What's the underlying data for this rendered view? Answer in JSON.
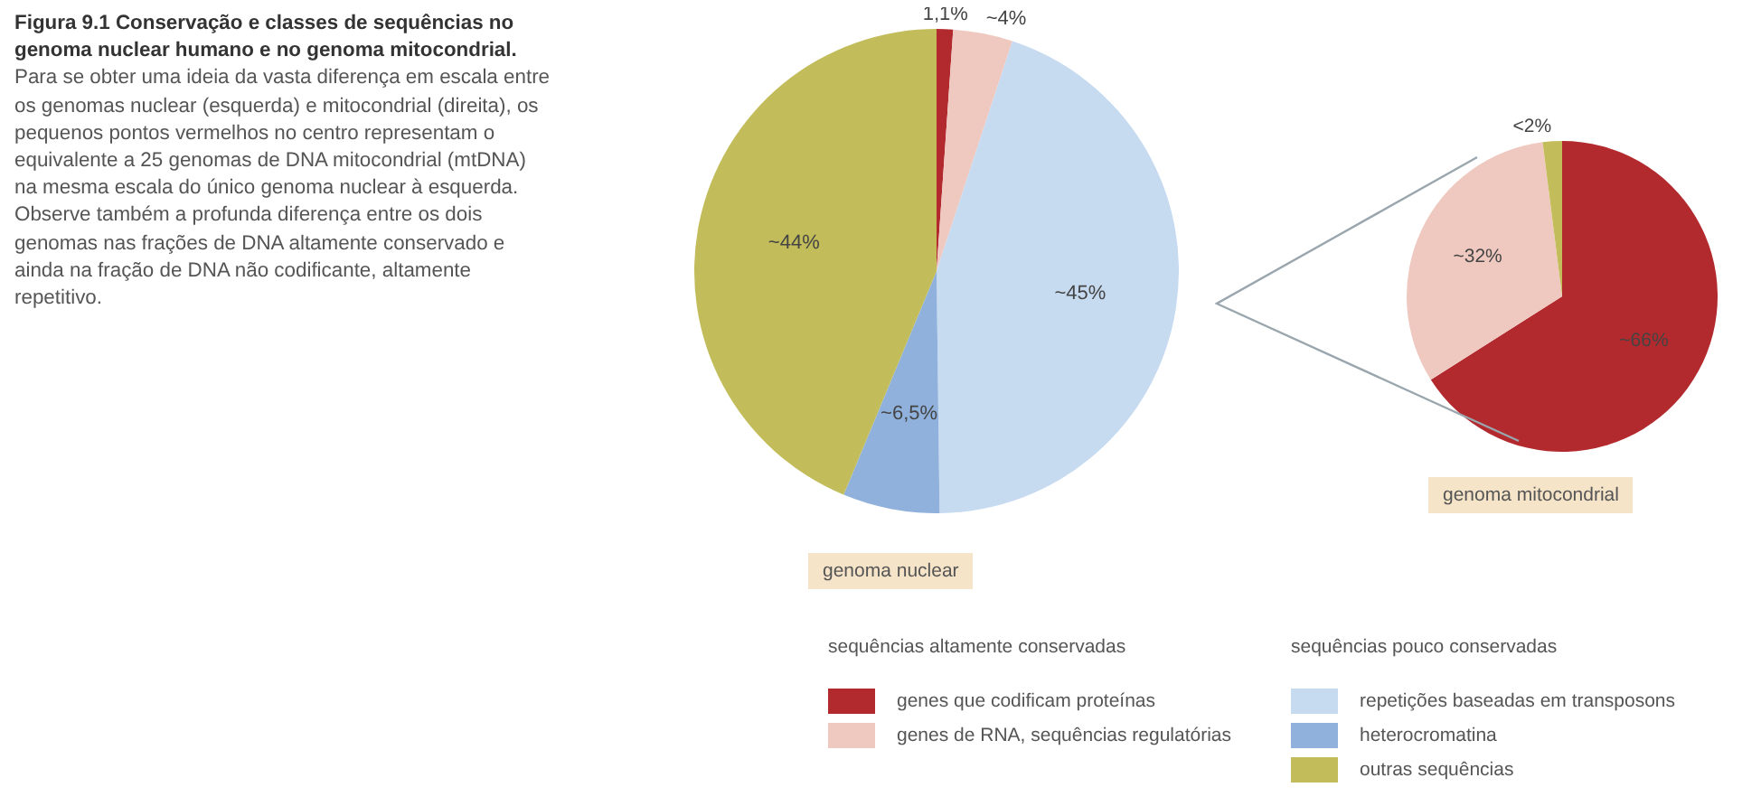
{
  "chart_data": [
    {
      "type": "pie",
      "title": "Figura 9.1 Conservação e classes de sequências no genoma nuclear humano e no genoma mitocondrial.",
      "annotations": [
        "Para se obter uma ideia da vasta diferença em escala entre os genomas nuclear (esquerda) e mitocondrial (direita), os pequenos pontos vermelhos no centro representam o equivalente a 25 genomas de DNA mitocondrial (mtDNA) na mesma escala do único genoma nuclear à esquerda. Observe também a profunda diferença entre os dois genomas nas frações de DNA altamente conservado e ainda na fração de DNA não codificante, altamente repetitivo.",
        "sequências altamente conservadas",
        "sequências pouco conservadas"
      ],
      "xlabel": "genoma nuclear",
      "categories": [
        "genes que codificam proteínas",
        "genes de RNA, sequências regulatórias",
        "repetições baseadas em transposons",
        "heterocromatina",
        "outras sequências"
      ],
      "values": [
        1.1,
        4,
        45,
        6.5,
        44
      ],
      "colors": [
        "#b22a2e",
        "#efc9c0",
        "#c6daf0",
        "#8fb1dc",
        "#c2bd5a"
      ],
      "value_labels": [
        "1,1%",
        "~4%",
        "~45%",
        "~6,5%",
        "~44%"
      ],
      "legend": "bottom"
    },
    {
      "type": "pie",
      "xlabel": "genoma mitocondrial",
      "categories": [
        null,
        null,
        null
      ],
      "values": [
        66,
        32,
        2
      ],
      "colors": [
        "#b22a2e",
        "#efc9c0",
        "#c2bd5a"
      ],
      "value_labels": [
        "~66%",
        "~32%",
        "<2%"
      ]
    }
  ]
}
